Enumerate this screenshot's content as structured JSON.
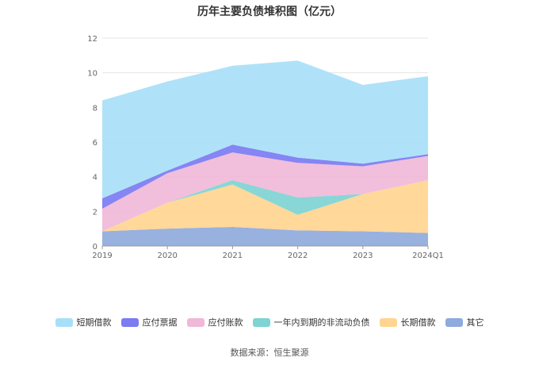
{
  "chart_data": {
    "type": "area",
    "stacked": true,
    "title": "历年主要负债堆积图（亿元）",
    "categories": [
      "2019",
      "2020",
      "2021",
      "2022",
      "2023",
      "2024Q1"
    ],
    "ylim": [
      0,
      12
    ],
    "yticks": [
      "0",
      "2",
      "4",
      "6",
      "8",
      "10",
      "12"
    ],
    "grid": true,
    "legend_position": "bottom",
    "series": [
      {
        "name": "其它",
        "color": "#8faadc",
        "values": [
          0.85,
          1.0,
          1.1,
          0.9,
          0.85,
          0.75
        ]
      },
      {
        "name": "长期借款",
        "color": "#ffd591",
        "values": [
          0.0,
          1.5,
          2.45,
          0.9,
          2.15,
          3.05
        ]
      },
      {
        "name": "一年内到期的非流动负债",
        "color": "#7fd3d3",
        "values": [
          0.0,
          0.0,
          0.25,
          1.0,
          0.0,
          0.0
        ]
      },
      {
        "name": "应付账款",
        "color": "#f0b8d8",
        "values": [
          1.3,
          1.7,
          1.6,
          2.0,
          1.6,
          1.4
        ]
      },
      {
        "name": "应付票据",
        "color": "#7b7bf2",
        "values": [
          0.6,
          0.15,
          0.45,
          0.3,
          0.15,
          0.1
        ]
      },
      {
        "name": "短期借款",
        "color": "#a8dff8",
        "values": [
          5.65,
          5.15,
          4.55,
          5.6,
          4.55,
          4.5
        ]
      }
    ]
  },
  "legend_order": [
    {
      "name": "短期借款",
      "color": "#a8dff8"
    },
    {
      "name": "应付票据",
      "color": "#7b7bf2"
    },
    {
      "name": "应付账款",
      "color": "#f0b8d8"
    },
    {
      "name": "一年内到期的非流动负债",
      "color": "#7fd3d3"
    },
    {
      "name": "长期借款",
      "color": "#ffd591"
    },
    {
      "name": "其它",
      "color": "#8faadc"
    }
  ],
  "source": "数据来源：恒生聚源"
}
